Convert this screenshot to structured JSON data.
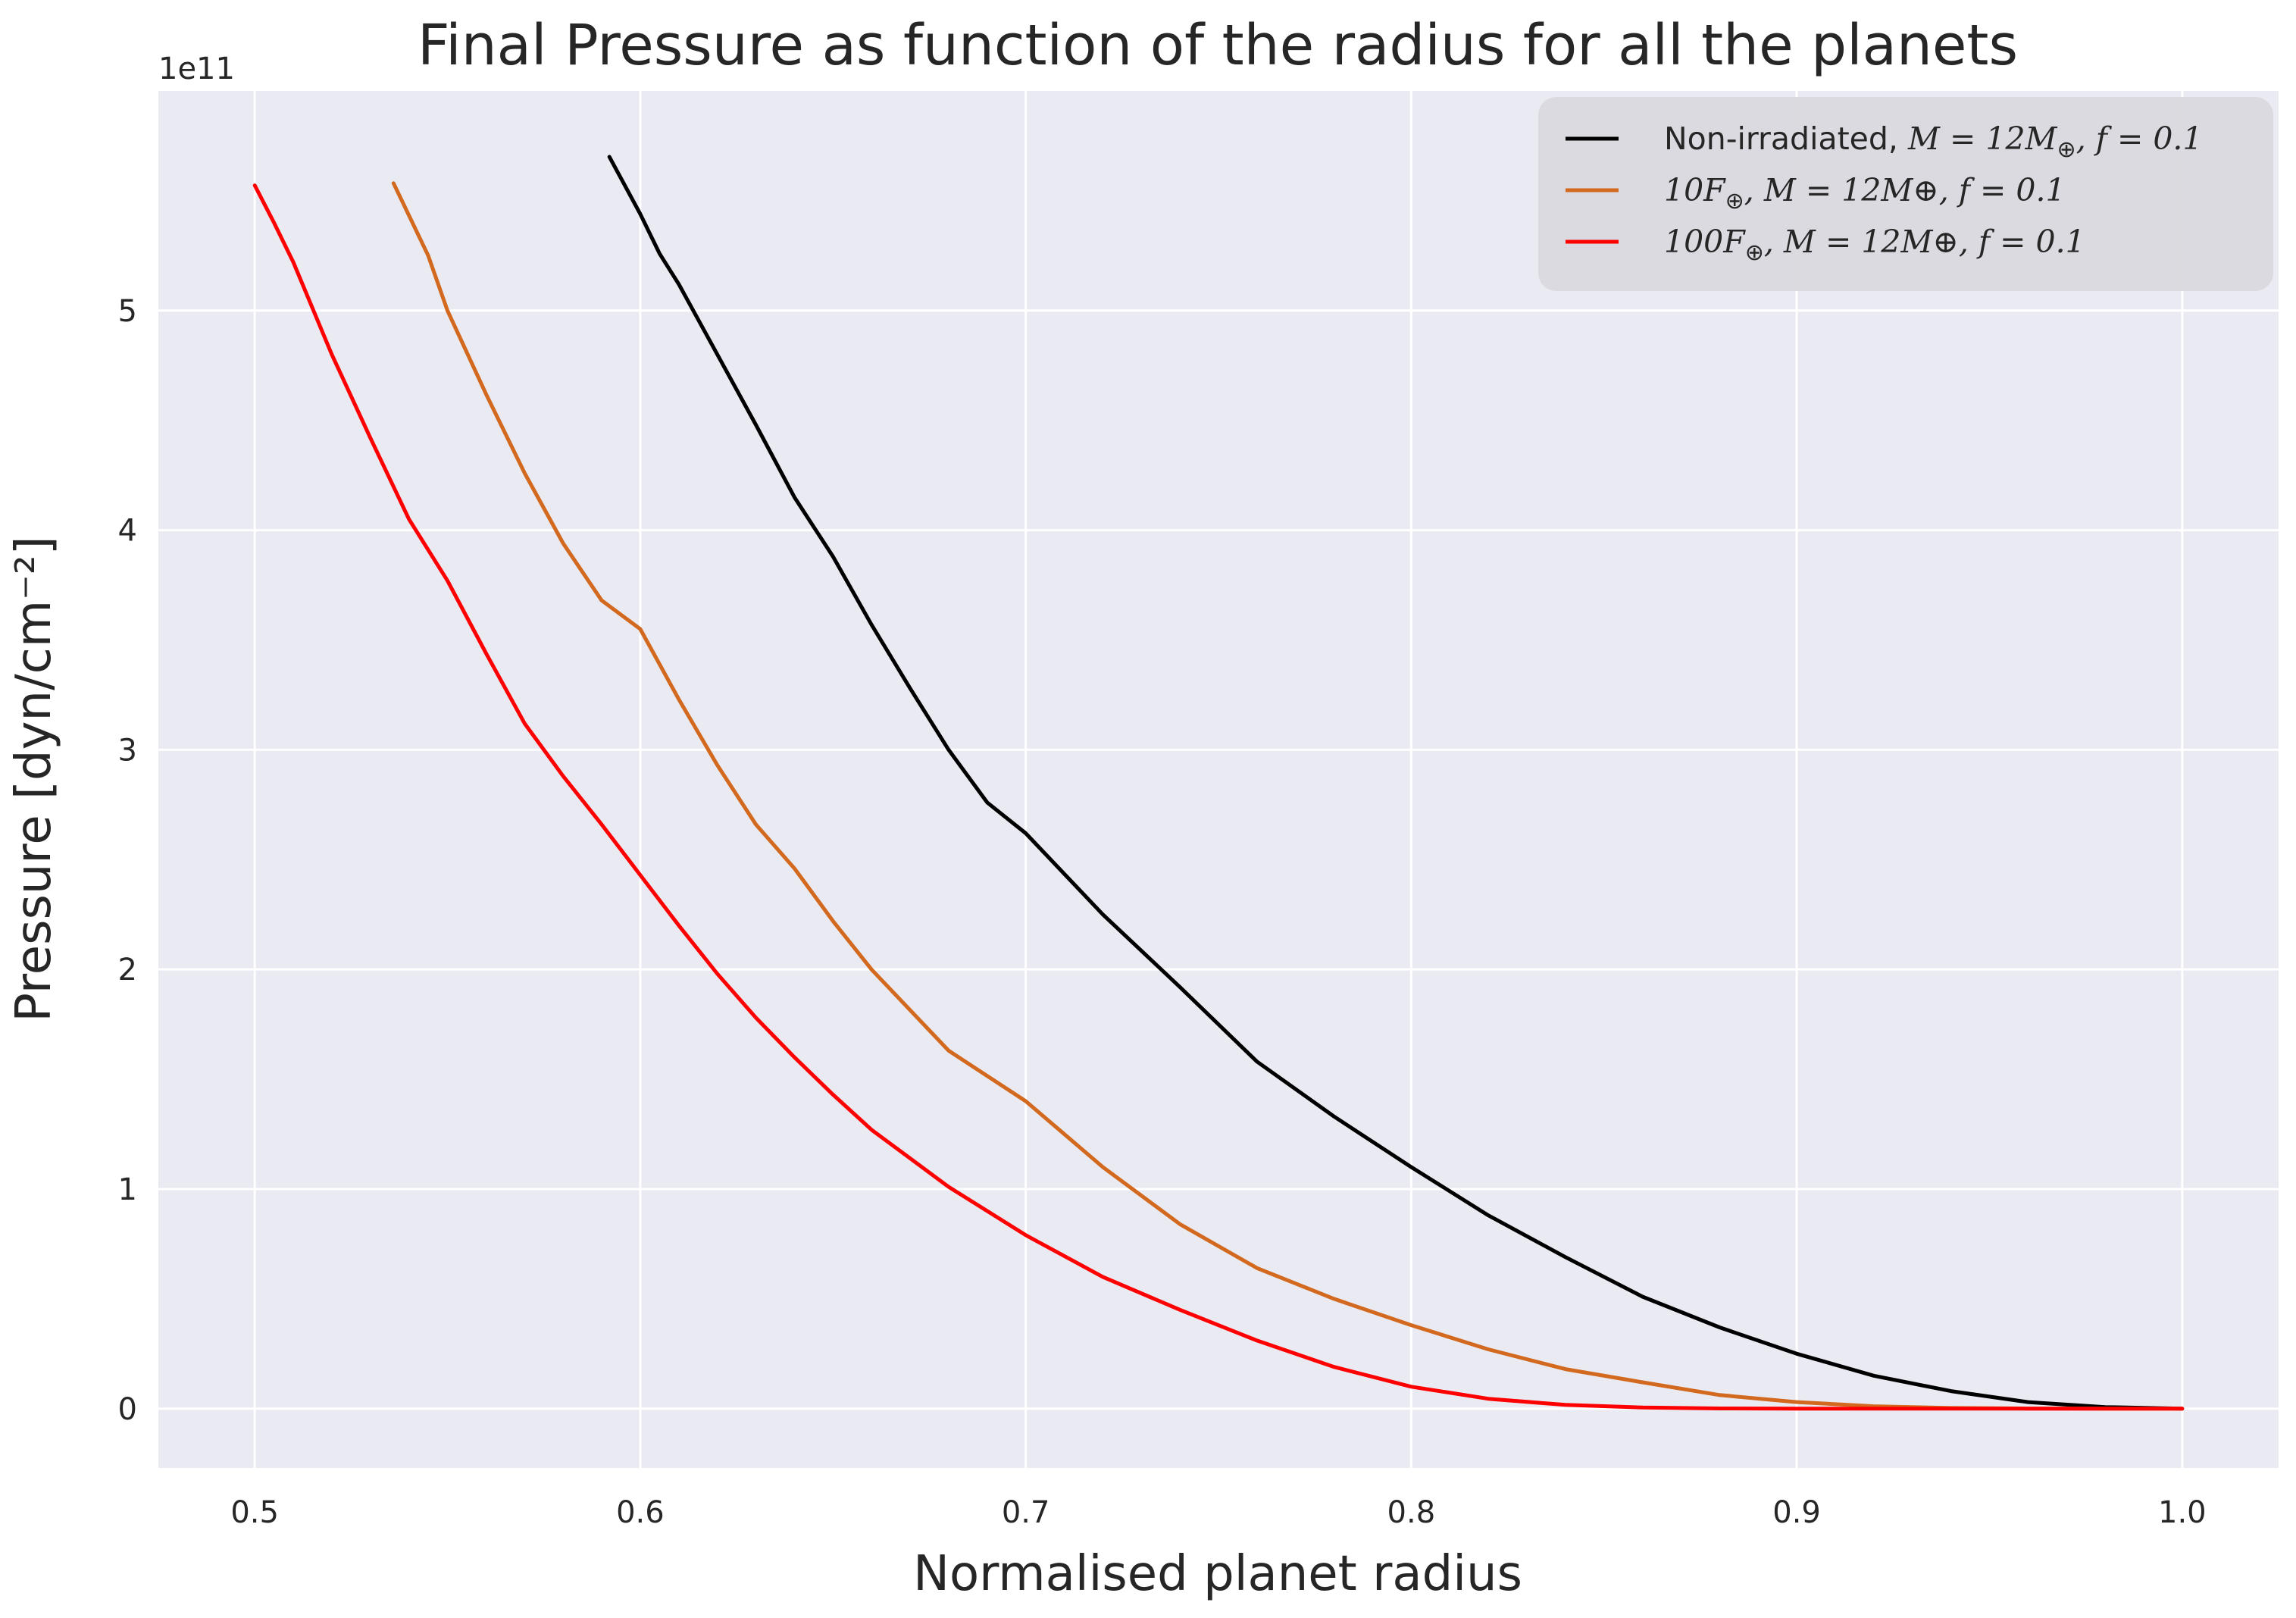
{
  "chart_data": {
    "type": "line",
    "title": "Final Pressure as function of the radius for all the planets",
    "xlabel": "Normalised planet radius",
    "ylabel": "Pressure [dyn/cm⁻²]",
    "y_offset_label": "1e11",
    "y_scale": 100000000000.0,
    "xlim": [
      0.475,
      1.025
    ],
    "ylim": [
      -0.27,
      6.0
    ],
    "x_ticks": [
      "0.5",
      "0.6",
      "0.7",
      "0.8",
      "0.9",
      "1.0"
    ],
    "y_ticks": [
      "0",
      "1",
      "2",
      "3",
      "4",
      "5"
    ],
    "grid": true,
    "legend_position": "upper right",
    "series": [
      {
        "name": "Non-irradiated, M = 12M⊕, f = 0.1",
        "color": "#000000",
        "x": [
          0.592,
          0.6,
          0.605,
          0.61,
          0.62,
          0.63,
          0.64,
          0.65,
          0.66,
          0.67,
          0.68,
          0.69,
          0.7,
          0.72,
          0.74,
          0.76,
          0.78,
          0.8,
          0.82,
          0.84,
          0.86,
          0.88,
          0.9,
          0.92,
          0.94,
          0.96,
          0.98,
          1.0
        ],
        "y": [
          5.7,
          5.44,
          5.26,
          5.12,
          4.8,
          4.48,
          4.15,
          3.88,
          3.57,
          3.28,
          3.0,
          2.76,
          2.62,
          2.25,
          1.92,
          1.58,
          1.33,
          1.1,
          0.88,
          0.69,
          0.51,
          0.37,
          0.25,
          0.15,
          0.08,
          0.03,
          0.007,
          0.0
        ]
      },
      {
        "name": "10F⊕, M = 12M⊕, f = 0.1",
        "color": "#d2691e",
        "x": [
          0.536,
          0.545,
          0.55,
          0.56,
          0.57,
          0.58,
          0.59,
          0.6,
          0.61,
          0.62,
          0.63,
          0.64,
          0.65,
          0.66,
          0.68,
          0.7,
          0.72,
          0.74,
          0.76,
          0.78,
          0.8,
          0.82,
          0.84,
          0.86,
          0.88,
          0.9,
          0.92,
          0.94,
          0.96,
          0.98,
          1.0
        ],
        "y": [
          5.58,
          5.25,
          5.0,
          4.62,
          4.26,
          3.94,
          3.68,
          3.55,
          3.23,
          2.93,
          2.66,
          2.46,
          2.22,
          2.0,
          1.63,
          1.4,
          1.1,
          0.84,
          0.64,
          0.5,
          0.38,
          0.27,
          0.18,
          0.12,
          0.062,
          0.03,
          0.011,
          0.003,
          0.0006,
          0.0001,
          0.0
        ]
      },
      {
        "name": "100F⊕, M = 12M⊕, f = 0.1",
        "color": "#ff0000",
        "x": [
          0.5,
          0.505,
          0.51,
          0.52,
          0.53,
          0.54,
          0.55,
          0.56,
          0.57,
          0.58,
          0.59,
          0.6,
          0.61,
          0.62,
          0.63,
          0.64,
          0.65,
          0.66,
          0.68,
          0.7,
          0.72,
          0.74,
          0.76,
          0.78,
          0.8,
          0.82,
          0.84,
          0.86,
          0.88,
          0.9,
          0.92,
          0.94,
          0.96,
          0.98,
          1.0
        ],
        "y": [
          5.57,
          5.4,
          5.22,
          4.8,
          4.42,
          4.05,
          3.77,
          3.44,
          3.12,
          2.88,
          2.66,
          2.43,
          2.2,
          1.98,
          1.78,
          1.6,
          1.43,
          1.27,
          1.01,
          0.79,
          0.6,
          0.45,
          0.31,
          0.19,
          0.1,
          0.045,
          0.017,
          0.005,
          0.001,
          0.0002,
          0.0,
          0.0,
          0.0,
          0.0,
          0.0
        ]
      }
    ]
  },
  "legend": [
    {
      "name_text": "Non-irradiated, ",
      "math": "M = 12M",
      "sub": "⊕",
      "rest": ", f = 0.1"
    },
    {
      "name_text": "",
      "math": "10F",
      "sub": "⊕",
      "rest": ", M = 12M⊕, f = 0.1"
    },
    {
      "name_text": "",
      "math": "100F",
      "sub": "⊕",
      "rest": ", M = 12M⊕, f = 0.1"
    }
  ]
}
